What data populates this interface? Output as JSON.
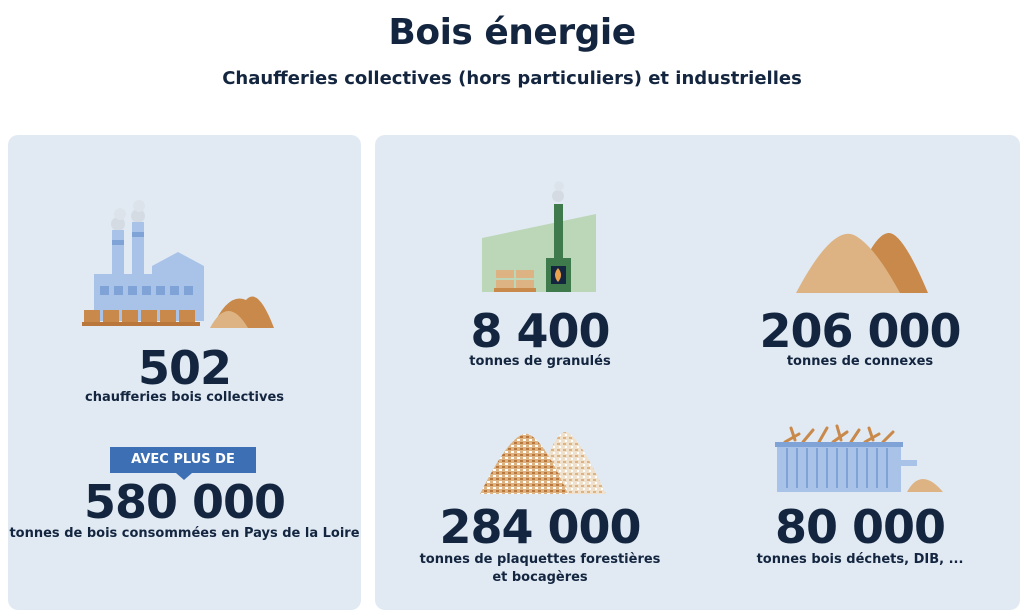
{
  "header": {
    "title": "Bois énergie",
    "subtitle": "Chaufferies collectives (hors particuliers) et industrielles"
  },
  "left_panel": {
    "count_value": "502",
    "count_label": "chaufferies bois collectives",
    "badge": "AVEC PLUS DE",
    "total_value": "580 000",
    "total_label": "tonnes de bois consommées en Pays de la Loire"
  },
  "right_panel": {
    "granules": {
      "value": "8 400",
      "label": "tonnes de granulés"
    },
    "connexes": {
      "value": "206 000",
      "label": "tonnes de connexes"
    },
    "plaquettes": {
      "value": "284 000",
      "label_line1": "tonnes de plaquettes forestières",
      "label_line2": "et bocagères"
    },
    "dechets": {
      "value": "80 000",
      "label": "tonnes bois déchets, DIB, ..."
    }
  },
  "colors": {
    "navy": "#13253f",
    "panel_bg": "#e1eaf3",
    "badge_blue": "#3d6fb4",
    "sand_light": "#ddb383",
    "sand_dark": "#c9894a",
    "factory_blue": "#a9c3e8",
    "greenhouse_green": "#bcd6b8",
    "chimney_green": "#3f7a4c"
  },
  "icons": [
    "factory-icon",
    "pellet-boiler-icon",
    "sawdust-pile-icon",
    "wood-chip-pile-icon",
    "waste-container-icon"
  ]
}
